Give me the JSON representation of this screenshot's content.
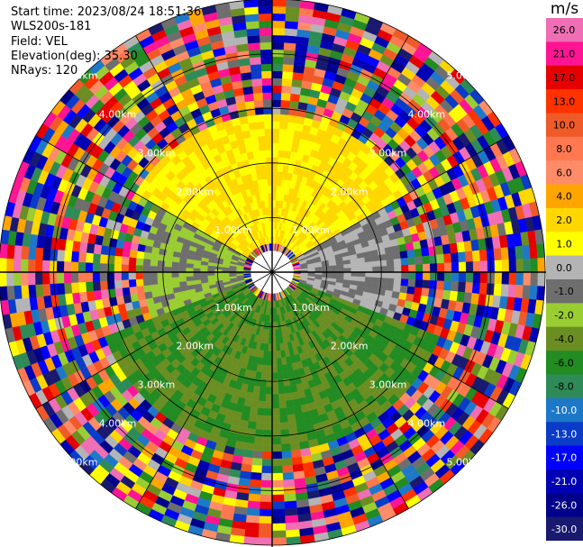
{
  "info": {
    "start_time": "Start time: 2023/08/24 18:51:36",
    "station": "WLS200s-181",
    "field": "Field: VEL",
    "elevation": "Elevation(deg): 35.30",
    "nrays": "NRays: 120"
  },
  "colorbar": {
    "unit": "m/s",
    "ticks": [
      "26.0",
      "21.0",
      "17.0",
      "13.0",
      "10.0",
      "8.0",
      "6.0",
      "4.0",
      "2.0",
      "1.0",
      "0.0",
      "-1.0",
      "-2.0",
      "-4.0",
      "-6.0",
      "-8.0",
      "-10.0",
      "-13.0",
      "-17.0",
      "-21.0",
      "-26.0",
      "-30.0"
    ],
    "colors": [
      "#f06eb4",
      "#ff1493",
      "#e60000",
      "#ff3200",
      "#f05a28",
      "#ff7850",
      "#ff8c69",
      "#ffa500",
      "#ffd700",
      "#ffff00",
      "#b4b4b4",
      "#6e6e6e",
      "#9acd32",
      "#6b8e23",
      "#228b22",
      "#2e8b57",
      "#1e78c8",
      "#0a3cc8",
      "#0000ff",
      "#0000b4",
      "#00008b",
      "#191970"
    ]
  },
  "chart_data": {
    "type": "polar PPI",
    "field": "VEL",
    "unit": "m/s",
    "nrays": 120,
    "range_ring_labels": [
      "1.00km",
      "2.00km",
      "3.00km",
      "4.00km",
      "5.00km"
    ],
    "range_ring_km": [
      1,
      2,
      3,
      4,
      5
    ],
    "max_range_km": 5,
    "color_scale_min": -30.0,
    "color_scale_max": 26.0,
    "spoke_angles_deg": [
      0,
      30,
      60,
      90,
      120,
      150,
      180,
      210,
      240,
      270,
      300,
      330
    ],
    "sectors": [
      {
        "azimuth_from": 300,
        "azimuth_to": 60,
        "range_km": [
          0.5,
          2.5
        ],
        "velocity": 2.0
      },
      {
        "azimuth_from": 60,
        "azimuth_to": 110,
        "range_km": [
          0.5,
          2.0
        ],
        "velocity": 0.0
      },
      {
        "azimuth_from": 110,
        "azimuth_to": 250,
        "range_km": [
          0.5,
          3.0
        ],
        "velocity": -4.0
      },
      {
        "azimuth_from": 250,
        "azimuth_to": 300,
        "range_km": [
          0.5,
          2.0
        ],
        "velocity": -1.0
      }
    ]
  }
}
